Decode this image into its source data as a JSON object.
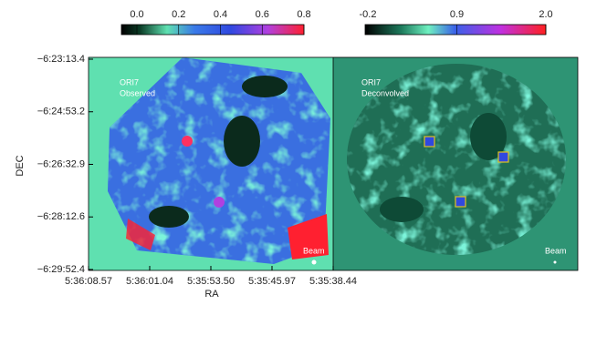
{
  "colorbars": [
    {
      "ticks": [
        "0.0",
        "0.2",
        "0.4",
        "0.6",
        "0.8"
      ]
    },
    {
      "ticks": [
        "-0.2",
        "0.9",
        "2.0"
      ]
    }
  ],
  "y_axis": {
    "label": "DEC",
    "ticks": [
      "−6:23:13.4",
      "−6:24:53.2",
      "−6:26:32.9",
      "−6:28:12.6",
      "−6:29:52.4"
    ]
  },
  "x_axis": {
    "label": "RA",
    "ticks": [
      "5:36:08.57",
      "5:36:01.04",
      "5:35:53.50",
      "5:35:45.97",
      "5:35:38.44"
    ]
  },
  "panels": [
    {
      "title": "ORI7",
      "subtitle": "Observed",
      "beam": "Beam"
    },
    {
      "title": "ORI7",
      "subtitle": "Deconvolved",
      "beam": "Beam"
    }
  ]
}
